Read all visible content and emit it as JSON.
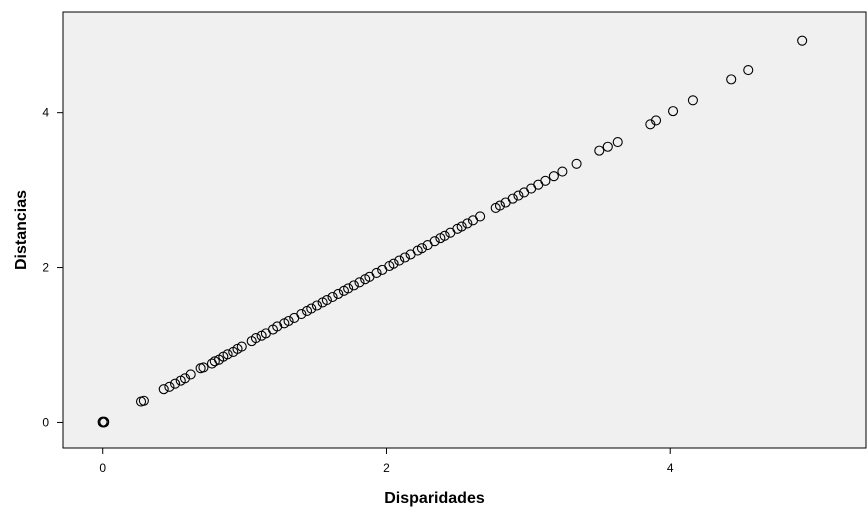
{
  "chart_data": {
    "type": "scatter",
    "title": "",
    "xlabel": "Disparidades",
    "ylabel": "Distancias",
    "xlim": [
      -0.28,
      5.38
    ],
    "ylim": [
      -0.33,
      5.3
    ],
    "xticks": [
      0,
      2,
      4
    ],
    "yticks": [
      0,
      2,
      4
    ],
    "grid": false,
    "legend": "none",
    "plot_background": "#f0f0f0",
    "marker_color": "#000000",
    "marker": "hollow-circle",
    "points": [
      [
        0.0,
        0.0
      ],
      [
        0.01,
        0.01
      ],
      [
        0.0,
        0.01
      ],
      [
        0.01,
        0.0
      ],
      [
        0.27,
        0.27
      ],
      [
        0.29,
        0.28
      ],
      [
        0.43,
        0.43
      ],
      [
        0.47,
        0.46
      ],
      [
        0.51,
        0.5
      ],
      [
        0.55,
        0.54
      ],
      [
        0.58,
        0.57
      ],
      [
        0.62,
        0.62
      ],
      [
        0.69,
        0.7
      ],
      [
        0.71,
        0.71
      ],
      [
        0.77,
        0.76
      ],
      [
        0.79,
        0.79
      ],
      [
        0.82,
        0.81
      ],
      [
        0.85,
        0.85
      ],
      [
        0.88,
        0.88
      ],
      [
        0.92,
        0.91
      ],
      [
        0.95,
        0.95
      ],
      [
        0.98,
        0.98
      ],
      [
        1.05,
        1.05
      ],
      [
        1.08,
        1.09
      ],
      [
        1.12,
        1.12
      ],
      [
        1.15,
        1.15
      ],
      [
        1.2,
        1.2
      ],
      [
        1.23,
        1.24
      ],
      [
        1.28,
        1.28
      ],
      [
        1.31,
        1.31
      ],
      [
        1.35,
        1.35
      ],
      [
        1.4,
        1.4
      ],
      [
        1.44,
        1.44
      ],
      [
        1.47,
        1.47
      ],
      [
        1.51,
        1.51
      ],
      [
        1.55,
        1.55
      ],
      [
        1.58,
        1.58
      ],
      [
        1.62,
        1.62
      ],
      [
        1.66,
        1.66
      ],
      [
        1.7,
        1.7
      ],
      [
        1.73,
        1.73
      ],
      [
        1.77,
        1.77
      ],
      [
        1.81,
        1.81
      ],
      [
        1.85,
        1.85
      ],
      [
        1.88,
        1.88
      ],
      [
        1.93,
        1.93
      ],
      [
        1.97,
        1.97
      ],
      [
        2.02,
        2.02
      ],
      [
        2.05,
        2.05
      ],
      [
        2.09,
        2.09
      ],
      [
        2.13,
        2.13
      ],
      [
        2.17,
        2.17
      ],
      [
        2.22,
        2.22
      ],
      [
        2.25,
        2.25
      ],
      [
        2.29,
        2.29
      ],
      [
        2.34,
        2.34
      ],
      [
        2.38,
        2.38
      ],
      [
        2.41,
        2.41
      ],
      [
        2.45,
        2.45
      ],
      [
        2.5,
        2.5
      ],
      [
        2.53,
        2.53
      ],
      [
        2.57,
        2.57
      ],
      [
        2.61,
        2.61
      ],
      [
        2.66,
        2.66
      ],
      [
        2.77,
        2.77
      ],
      [
        2.8,
        2.8
      ],
      [
        2.84,
        2.84
      ],
      [
        2.89,
        2.89
      ],
      [
        2.93,
        2.93
      ],
      [
        2.97,
        2.97
      ],
      [
        3.02,
        3.02
      ],
      [
        3.07,
        3.07
      ],
      [
        3.12,
        3.12
      ],
      [
        3.18,
        3.18
      ],
      [
        3.24,
        3.24
      ],
      [
        3.34,
        3.34
      ],
      [
        3.5,
        3.51
      ],
      [
        3.56,
        3.56
      ],
      [
        3.63,
        3.62
      ],
      [
        3.86,
        3.85
      ],
      [
        3.9,
        3.9
      ],
      [
        4.02,
        4.02
      ],
      [
        4.16,
        4.16
      ],
      [
        4.43,
        4.43
      ],
      [
        4.55,
        4.55
      ],
      [
        4.93,
        4.93
      ]
    ]
  }
}
